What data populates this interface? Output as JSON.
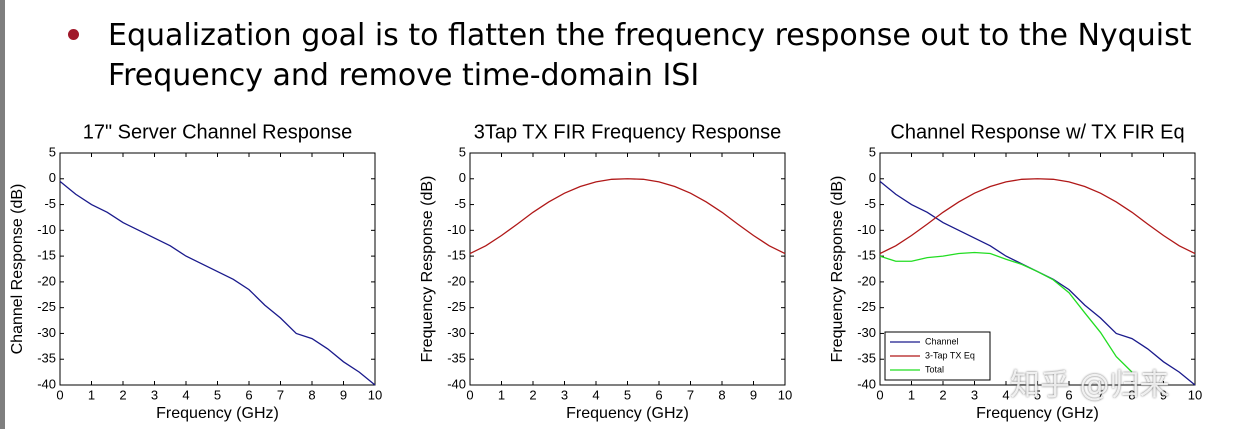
{
  "bullet": "Equalization goal is to flatten the frequency response out to the Nyquist Frequency and remove time-domain ISI",
  "watermark": "知乎 @归来",
  "chart_data": [
    {
      "type": "line",
      "title": "17\" Server Channel Response",
      "xlabel": "Frequency (GHz)",
      "ylabel": "Channel Response (dB)",
      "x": [
        0,
        0.5,
        1,
        1.5,
        2,
        2.5,
        3,
        3.5,
        4,
        4.5,
        5,
        5.5,
        6,
        6.5,
        7,
        7.5,
        8,
        8.5,
        9,
        9.5,
        10
      ],
      "series": [
        {
          "color": "#1a1a8c",
          "values": [
            -0.5,
            -3,
            -5,
            -6.5,
            -8.5,
            -10,
            -11.5,
            -13,
            -15,
            -16.5,
            -18,
            -19.5,
            -21.5,
            -24.5,
            -27,
            -30,
            -31,
            -33,
            -35.5,
            -37.5,
            -40
          ]
        }
      ],
      "xlim": [
        0,
        10
      ],
      "ylim": [
        -40,
        5
      ],
      "xticks": [
        0,
        1,
        2,
        3,
        4,
        5,
        6,
        7,
        8,
        9,
        10
      ],
      "yticks": [
        5,
        0,
        -5,
        -10,
        -15,
        -20,
        -25,
        -30,
        -35,
        -40
      ]
    },
    {
      "type": "line",
      "title": "3Tap TX FIR Frequency Response",
      "xlabel": "Frequency (GHz)",
      "ylabel": "Frequency Response (dB)",
      "x": [
        0,
        0.5,
        1,
        1.5,
        2,
        2.5,
        3,
        3.5,
        4,
        4.5,
        5,
        5.5,
        6,
        6.5,
        7,
        7.5,
        8,
        8.5,
        9,
        9.5,
        10
      ],
      "series": [
        {
          "color": "#b01818",
          "values": [
            -14.5,
            -13,
            -11,
            -8.8,
            -6.5,
            -4.5,
            -2.8,
            -1.5,
            -0.6,
            -0.1,
            0,
            -0.1,
            -0.6,
            -1.5,
            -2.8,
            -4.5,
            -6.5,
            -8.8,
            -11,
            -13,
            -14.5
          ]
        }
      ],
      "xlim": [
        0,
        10
      ],
      "ylim": [
        -40,
        5
      ],
      "xticks": [
        0,
        1,
        2,
        3,
        4,
        5,
        6,
        7,
        8,
        9,
        10
      ],
      "yticks": [
        5,
        0,
        -5,
        -10,
        -15,
        -20,
        -25,
        -30,
        -35,
        -40
      ]
    },
    {
      "type": "line",
      "title": "Channel Response w/ TX FIR Eq",
      "xlabel": "Frequency (GHz)",
      "ylabel": "Frequency Response (dB)",
      "x": [
        0,
        0.5,
        1,
        1.5,
        2,
        2.5,
        3,
        3.5,
        4,
        4.5,
        5,
        5.5,
        6,
        6.5,
        7,
        7.5,
        8,
        8.5,
        9,
        9.5,
        10
      ],
      "series": [
        {
          "name": "Channel",
          "color": "#1a1a8c",
          "values": [
            -0.5,
            -3,
            -5,
            -6.5,
            -8.5,
            -10,
            -11.5,
            -13,
            -15,
            -16.5,
            -18,
            -19.5,
            -21.5,
            -24.5,
            -27,
            -30,
            -31,
            -33,
            -35.5,
            -37.5,
            -40
          ]
        },
        {
          "name": "3-Tap TX Eq",
          "color": "#b01818",
          "values": [
            -14.5,
            -13,
            -11,
            -8.8,
            -6.5,
            -4.5,
            -2.8,
            -1.5,
            -0.6,
            -0.1,
            0,
            -0.1,
            -0.6,
            -1.5,
            -2.8,
            -4.5,
            -6.5,
            -8.8,
            -11,
            -13,
            -14.5
          ]
        },
        {
          "name": "Total",
          "color": "#22dd22",
          "values": [
            -15,
            -16,
            -16,
            -15.3,
            -15,
            -14.5,
            -14.3,
            -14.5,
            -15.6,
            -16.6,
            -18,
            -19.6,
            -22.1,
            -26,
            -29.8,
            -34.5,
            -37.5,
            null,
            null,
            null,
            null
          ]
        }
      ],
      "legend": "lower left",
      "xlim": [
        0,
        10
      ],
      "ylim": [
        -40,
        5
      ],
      "xticks": [
        0,
        1,
        2,
        3,
        4,
        5,
        6,
        7,
        8,
        9,
        10
      ],
      "yticks": [
        5,
        0,
        -5,
        -10,
        -15,
        -20,
        -25,
        -30,
        -35,
        -40
      ]
    }
  ]
}
